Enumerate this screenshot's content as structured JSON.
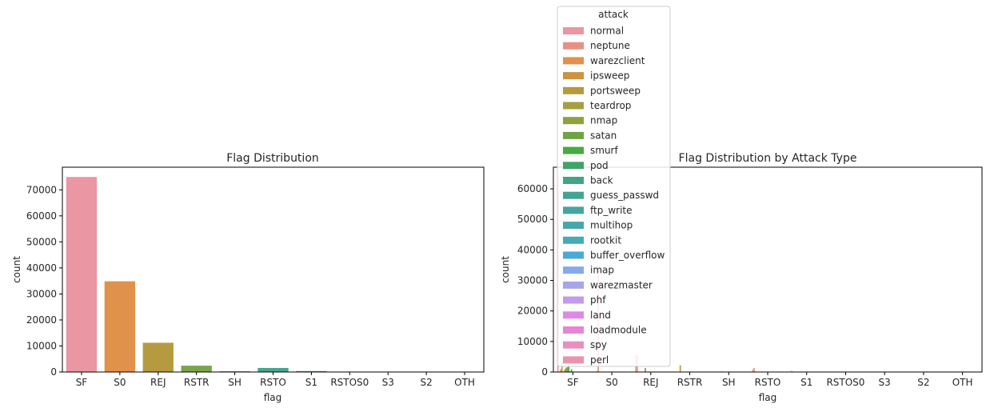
{
  "chart_data": [
    {
      "type": "bar",
      "title": "Flag Distribution",
      "xlabel": "flag",
      "ylabel": "count",
      "ylim": [
        0,
        78700
      ],
      "yticks": [
        0,
        10000,
        20000,
        30000,
        40000,
        50000,
        60000,
        70000
      ],
      "grid": false,
      "categories": [
        "SF",
        "S0",
        "REJ",
        "RSTR",
        "SH",
        "RSTO",
        "S1",
        "RSTOS0",
        "S3",
        "S2",
        "OTH"
      ],
      "values": [
        74945,
        34851,
        11233,
        2421,
        271,
        1562,
        365,
        103,
        49,
        127,
        46
      ],
      "colors": [
        "#ea96a3",
        "#e0914c",
        "#b59a3f",
        "#7ba349",
        "#4aac62",
        "#45a68e",
        "#48a6b0",
        "#6cb0e3",
        "#b7a3e9",
        "#e37fdb",
        "#e78ec3"
      ]
    },
    {
      "type": "bar",
      "title": "Flag Distribution by Attack Type",
      "xlabel": "flag",
      "ylabel": "count",
      "ylim": [
        0,
        67100
      ],
      "yticks": [
        0,
        10000,
        20000,
        30000,
        40000,
        50000,
        60000
      ],
      "grid": false,
      "legend": {
        "title": "attack",
        "placement": "upper-center"
      },
      "categories": [
        "SF",
        "S0",
        "REJ",
        "RSTR",
        "SH",
        "RSTO",
        "S1",
        "RSTOS0",
        "S3",
        "S2",
        "OTH"
      ],
      "series": [
        {
          "name": "normal",
          "color": "#ea96a3",
          "values": [
            63900,
            350,
            5400,
            150,
            20,
            800,
            360,
            0,
            45,
            120,
            30
          ]
        },
        {
          "name": "neptune",
          "color": "#e99084",
          "values": [
            80,
            34500,
            5700,
            0,
            0,
            1300,
            0,
            0,
            0,
            0,
            10
          ]
        },
        {
          "name": "warezclient",
          "color": "#e0914c",
          "values": [
            890,
            0,
            0,
            0,
            0,
            0,
            0,
            0,
            0,
            0,
            0
          ]
        },
        {
          "name": "ipsweep",
          "color": "#ca9440",
          "values": [
            3000,
            0,
            20,
            0,
            0,
            0,
            0,
            0,
            0,
            0,
            0
          ]
        },
        {
          "name": "portsweep",
          "color": "#b59a3f",
          "values": [
            30,
            10,
            100,
            2200,
            0,
            0,
            0,
            100,
            0,
            0,
            0
          ]
        },
        {
          "name": "teardrop",
          "color": "#a4a03f",
          "values": [
            890,
            0,
            0,
            0,
            0,
            0,
            0,
            0,
            0,
            0,
            0
          ]
        },
        {
          "name": "nmap",
          "color": "#8ea13f",
          "values": [
            1400,
            0,
            0,
            0,
            200,
            0,
            0,
            0,
            0,
            0,
            0
          ]
        },
        {
          "name": "satan",
          "color": "#6fa344",
          "values": [
            1600,
            20,
            1300,
            50,
            10,
            0,
            0,
            0,
            0,
            0,
            0
          ]
        },
        {
          "name": "smurf",
          "color": "#47ab43",
          "values": [
            2600,
            0,
            0,
            0,
            0,
            0,
            0,
            0,
            0,
            0,
            0
          ]
        },
        {
          "name": "pod",
          "color": "#3fa468",
          "values": [
            200,
            0,
            0,
            0,
            0,
            0,
            0,
            0,
            0,
            0,
            0
          ]
        },
        {
          "name": "back",
          "color": "#42a386",
          "values": [
            950,
            0,
            0,
            0,
            0,
            0,
            0,
            0,
            0,
            0,
            0
          ]
        },
        {
          "name": "guess_passwd",
          "color": "#43a493",
          "values": [
            50,
            0,
            0,
            0,
            0,
            0,
            0,
            0,
            0,
            0,
            0
          ]
        },
        {
          "name": "ftp_write",
          "color": "#45a69f",
          "values": [
            8,
            0,
            0,
            0,
            0,
            0,
            0,
            0,
            0,
            0,
            0
          ]
        },
        {
          "name": "multihop",
          "color": "#46a7ab",
          "values": [
            7,
            0,
            0,
            0,
            0,
            0,
            0,
            0,
            0,
            0,
            0
          ]
        },
        {
          "name": "rootkit",
          "color": "#48a9b7",
          "values": [
            10,
            0,
            0,
            0,
            0,
            0,
            0,
            0,
            0,
            0,
            0
          ]
        },
        {
          "name": "buffer_overflow",
          "color": "#4ba9d9",
          "values": [
            30,
            0,
            0,
            0,
            0,
            0,
            0,
            0,
            0,
            0,
            0
          ]
        },
        {
          "name": "imap",
          "color": "#86a9ec",
          "values": [
            11,
            0,
            0,
            0,
            0,
            0,
            0,
            0,
            0,
            0,
            0
          ]
        },
        {
          "name": "warezmaster",
          "color": "#a8a5e8",
          "values": [
            20,
            0,
            0,
            0,
            0,
            0,
            0,
            0,
            0,
            0,
            0
          ]
        },
        {
          "name": "phf",
          "color": "#c49be9",
          "values": [
            4,
            0,
            0,
            0,
            0,
            0,
            0,
            0,
            0,
            0,
            0
          ]
        },
        {
          "name": "land",
          "color": "#dd8ae6",
          "values": [
            18,
            0,
            0,
            0,
            0,
            0,
            0,
            0,
            0,
            0,
            0
          ]
        },
        {
          "name": "loadmodule",
          "color": "#e784d6",
          "values": [
            9,
            0,
            0,
            0,
            0,
            0,
            0,
            0,
            0,
            0,
            0
          ]
        },
        {
          "name": "spy",
          "color": "#e98fc0",
          "values": [
            2,
            0,
            0,
            0,
            0,
            0,
            0,
            0,
            0,
            0,
            0
          ]
        },
        {
          "name": "perl",
          "color": "#ea93ae",
          "values": [
            3,
            0,
            0,
            0,
            0,
            0,
            0,
            0,
            0,
            0,
            0
          ]
        }
      ]
    }
  ]
}
